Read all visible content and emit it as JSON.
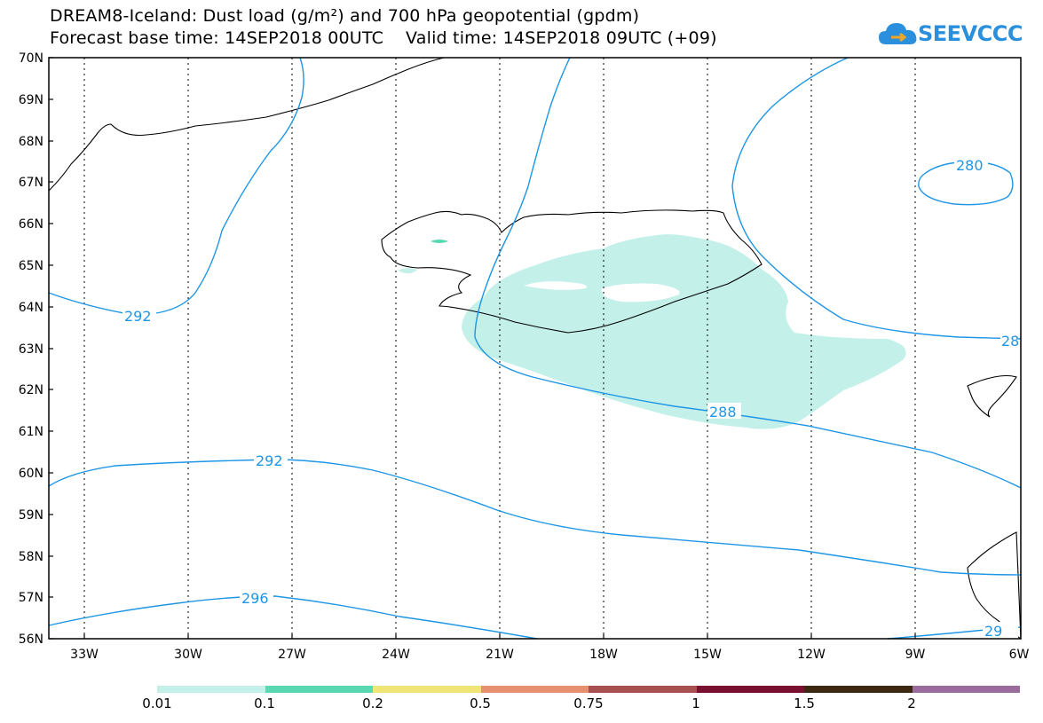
{
  "header": {
    "title_line1": "DREAM8-Iceland: Dust load (g/m²) and 700 hPa geopotential (gpdm)",
    "title_line2": "Forecast base time: 14SEP2018 00UTC    Valid time: 14SEP2018 09UTC (+09)",
    "logo_text": "SEEVCCC"
  },
  "map": {
    "lat_labels": [
      "70N",
      "69N",
      "68N",
      "67N",
      "66N",
      "65N",
      "64N",
      "63N",
      "62N",
      "61N",
      "60N",
      "59N",
      "58N",
      "57N",
      "56N"
    ],
    "lon_labels": [
      "33W",
      "30W",
      "27W",
      "24W",
      "21W",
      "18W",
      "15W",
      "12W",
      "9W",
      "6W"
    ],
    "contour_labels": [
      "292",
      "292",
      "296",
      "288",
      "280",
      "28",
      "29"
    ],
    "contour_color": "#1e96e6",
    "dust_color": "#c4f0ea",
    "grid": "dotted"
  },
  "colorbar": {
    "labels": [
      "0.01",
      "0.1",
      "0.2",
      "0.5",
      "0.75",
      "1",
      "1.5",
      "2"
    ],
    "colors": [
      "#c4f0ea",
      "#5ad8b4",
      "#f0e678",
      "#e69070",
      "#a85050",
      "#7a1030",
      "#3c2810",
      "#9a6c9e"
    ]
  }
}
